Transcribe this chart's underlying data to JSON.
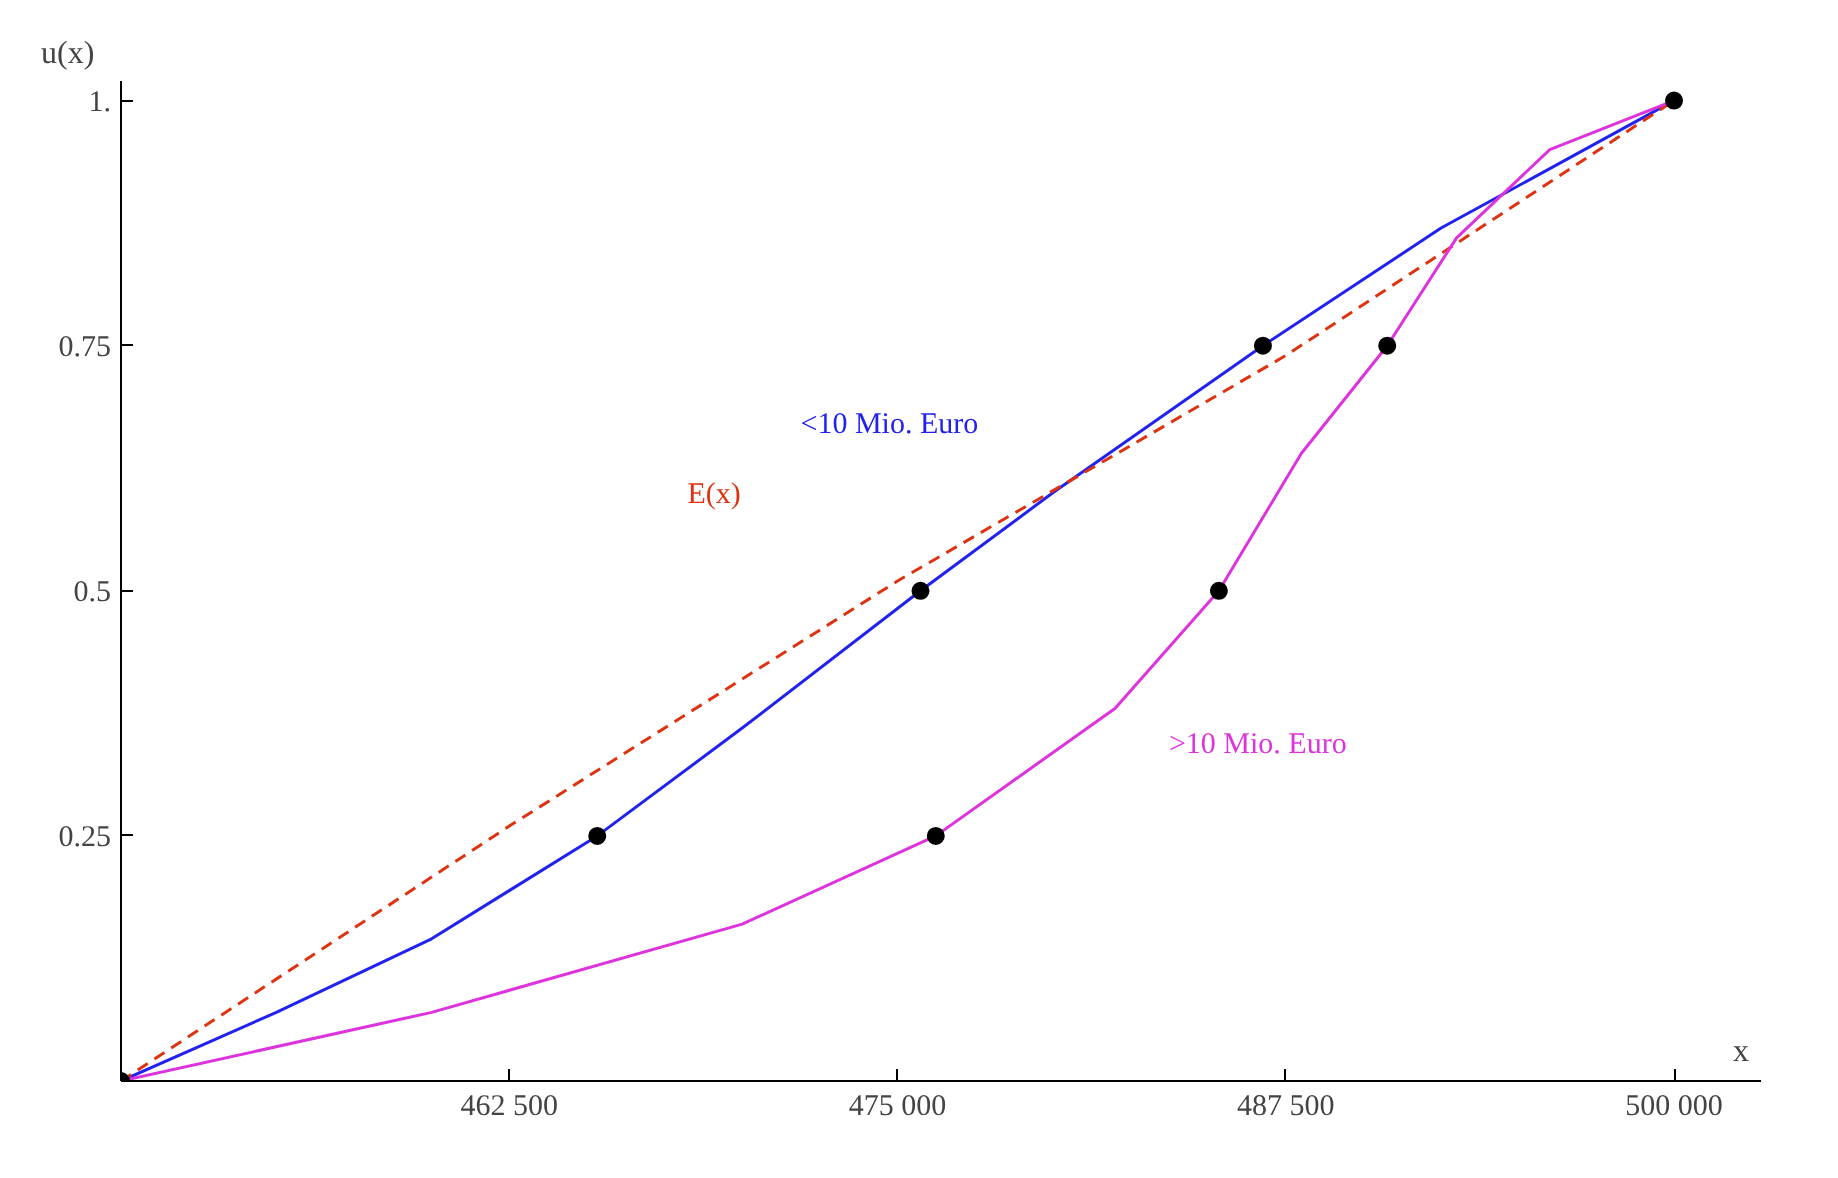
{
  "chart_data": {
    "type": "line",
    "xlabel": "x",
    "ylabel": "u(x)",
    "xlim": [
      450000,
      502800
    ],
    "ylim": [
      0,
      1.02
    ],
    "xticks": [
      {
        "value": 462500,
        "label": "462 500"
      },
      {
        "value": 475000,
        "label": "475 000"
      },
      {
        "value": 487500,
        "label": "487 500"
      },
      {
        "value": 500000,
        "label": "500 000"
      }
    ],
    "yticks": [
      0.25,
      0.5,
      {
        "value": 0.75,
        "label": "0.75"
      },
      {
        "value": 1,
        "label": "1."
      }
    ],
    "grid": false,
    "series": [
      {
        "name": "<10 Mio. Euro",
        "color": "#2222ee",
        "line_style": "solid",
        "x": [
          450000,
          455000,
          460000,
          465333,
          470000,
          475740,
          480000,
          486764,
          492500,
          500000
        ],
        "values": [
          0,
          0.07,
          0.145,
          0.25,
          0.36,
          0.5,
          0.6,
          0.75,
          0.87,
          1
        ]
      },
      {
        "name": "E(x)",
        "color": "#dd3311",
        "line_style": "dashed",
        "x": [
          450000,
          462500,
          475000,
          487500,
          500000
        ],
        "values": [
          0,
          0.26,
          0.51,
          0.74,
          1
        ]
      },
      {
        "name": ">10 Mio. Euro",
        "color": "#dd33dd",
        "line_style": "solid",
        "x": [
          450000,
          460000,
          470000,
          476232,
          482000,
          485347,
          488000,
          490766,
          493000,
          496000,
          500000
        ],
        "values": [
          0,
          0.07,
          0.16,
          0.25,
          0.38,
          0.5,
          0.64,
          0.75,
          0.86,
          0.95,
          1
        ]
      },
      {
        "type": "scatter",
        "color": "#000000",
        "marker": "circle",
        "x": [
          450000,
          465333,
          475740,
          486764,
          500000,
          476232,
          485347,
          490766
        ],
        "values": [
          0,
          0.25,
          0.5,
          0.75,
          1,
          0.25,
          0.5,
          0.75
        ]
      }
    ]
  }
}
